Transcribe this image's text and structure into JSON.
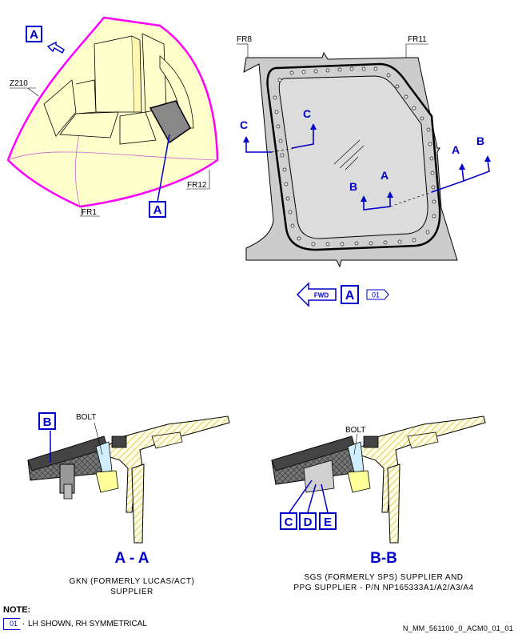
{
  "top_left": {
    "view_label": "A",
    "zone": "Z210",
    "frame_fr1": "FR1",
    "frame_fr12": "FR12",
    "callout": "A"
  },
  "top_right": {
    "frame_fr8": "FR8",
    "frame_fr11": "FR11",
    "cut_c_left": "C",
    "cut_c_right": "C",
    "cut_a_upper": "A",
    "cut_a_lower": "A",
    "cut_b_upper": "B",
    "cut_b_lower": "B"
  },
  "fwd_indicator": {
    "fwd": "FWD",
    "view": "A",
    "note_ref": "01"
  },
  "section_aa": {
    "callout": "B",
    "bolt": "BOLT",
    "title": "A - A",
    "caption_line1": "GKN (FORMERLY LUCAS/ACT)",
    "caption_line2": "SUPPLIER"
  },
  "section_bb": {
    "bolt": "BOLT",
    "callout_c": "C",
    "callout_d": "D",
    "callout_e": "E",
    "title": "B-B",
    "caption_line1": "SGS (FORMERLY SPS) SUPPLIER AND",
    "caption_line2": "PPG SUPPLIER - P/N NP165333A1/A2/A3/A4"
  },
  "note": {
    "title": "NOTE:",
    "ref": "01",
    "text": "LH SHOWN, RH SYMMETRICAL"
  },
  "doc_ref": "N_MM_561100_0_ACM0_01_01",
  "colors": {
    "callout_blue": "#0000cc",
    "cockpit_outline": "#ff00ff",
    "cockpit_fill": "#ffffcc",
    "structure_fill": "#cccccc",
    "hatch": "#c8b400"
  }
}
